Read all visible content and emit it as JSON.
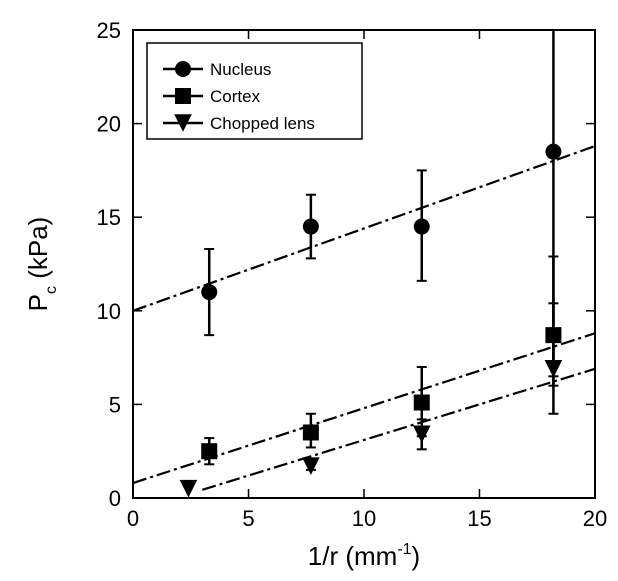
{
  "chart_data": {
    "type": "scatter",
    "xlabel": {
      "main": "1/r (mm",
      "sup": "-1",
      "end": ")"
    },
    "ylabel": {
      "main": "P",
      "sub": "c",
      "end": " (kPa)"
    },
    "xlim": [
      0,
      20
    ],
    "ylim": [
      0,
      25
    ],
    "xticks": [
      0,
      5,
      10,
      15,
      20
    ],
    "yticks": [
      0,
      5,
      10,
      15,
      20,
      25
    ],
    "grid": false,
    "legend_position": "top-left",
    "series": [
      {
        "name": "Nucleus",
        "marker": "circle",
        "x": [
          3.3,
          7.7,
          12.5,
          18.2
        ],
        "y": [
          11.0,
          14.5,
          14.5,
          18.5
        ],
        "err_low": [
          8.7,
          12.8,
          11.6,
          4.5
        ],
        "err_high": [
          13.3,
          16.2,
          17.5,
          25.0
        ],
        "fit": {
          "slope": 0.44,
          "intercept": 10.0,
          "x_from": 0,
          "x_to": 20
        }
      },
      {
        "name": "Cortex",
        "marker": "square",
        "x": [
          3.3,
          7.7,
          12.5,
          18.2
        ],
        "y": [
          2.5,
          3.5,
          5.1,
          8.7
        ],
        "err_low": [
          1.8,
          2.7,
          3.3,
          6.5
        ],
        "err_high": [
          3.2,
          4.5,
          7.0,
          10.4
        ],
        "fit": {
          "slope": 0.4,
          "intercept": 0.8,
          "x_from": 0,
          "x_to": 20
        }
      },
      {
        "name": "Chopped lens",
        "marker": "triangle-down",
        "x": [
          2.4,
          7.7,
          12.5,
          18.2
        ],
        "y": [
          0.5,
          1.7,
          3.4,
          6.9
        ],
        "err_low": [
          0.5,
          1.5,
          2.6,
          6.0
        ],
        "err_high": [
          0.5,
          2.0,
          4.2,
          12.9
        ],
        "fit": {
          "slope": 0.38,
          "intercept": -0.7,
          "x_from": 3,
          "x_to": 20
        }
      }
    ]
  }
}
